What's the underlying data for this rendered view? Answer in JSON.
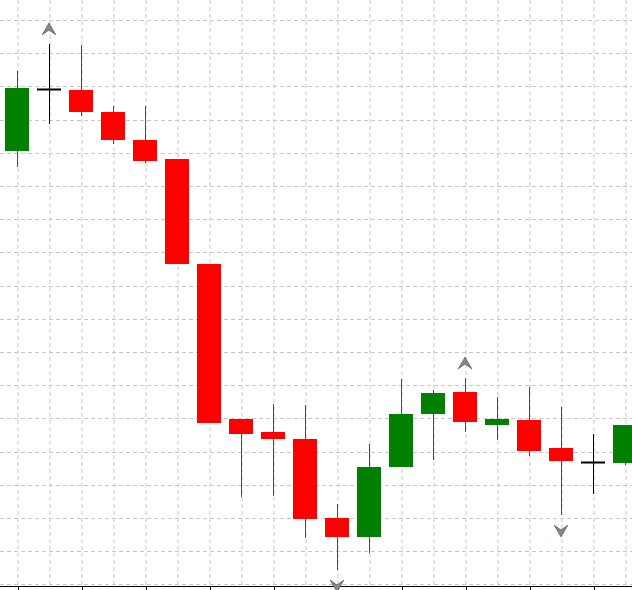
{
  "chart_data": {
    "type": "candlestick",
    "title": "",
    "xlabel": "",
    "ylabel": "",
    "grid": true,
    "legend": "none",
    "ylim": [
      0,
      590
    ],
    "colors": {
      "up": "#008000",
      "down": "#ff0000",
      "doji": "#000000",
      "grid": "#c8c8c8",
      "axis": "#000000",
      "fractal": "#808890"
    },
    "candles": [
      {
        "open": 439,
        "high": 519,
        "low": 423,
        "close": 502
      },
      {
        "open": 501,
        "high": 546,
        "low": 466,
        "close": 501
      },
      {
        "open": 500,
        "high": 545,
        "low": 474,
        "close": 478
      },
      {
        "open": 478,
        "high": 484,
        "low": 446,
        "close": 450
      },
      {
        "open": 450,
        "high": 484,
        "low": 427,
        "close": 429
      },
      {
        "open": 431,
        "high": 431,
        "low": 326,
        "close": 326
      },
      {
        "open": 326,
        "high": 326,
        "low": 167,
        "close": 167
      },
      {
        "open": 171,
        "high": 171,
        "low": 93,
        "close": 156
      },
      {
        "open": 158,
        "high": 186,
        "low": 94,
        "close": 151
      },
      {
        "open": 151,
        "high": 185,
        "low": 52,
        "close": 71
      },
      {
        "open": 72,
        "high": 86,
        "low": 20,
        "close": 53
      },
      {
        "open": 53,
        "high": 146,
        "low": 37,
        "close": 123
      },
      {
        "open": 123,
        "high": 211,
        "low": 123,
        "close": 176
      },
      {
        "open": 176,
        "high": 200,
        "low": 130,
        "close": 197
      },
      {
        "open": 198,
        "high": 212,
        "low": 158,
        "close": 168
      },
      {
        "open": 165,
        "high": 193,
        "low": 150,
        "close": 171
      },
      {
        "open": 170,
        "high": 203,
        "low": 134,
        "close": 139
      },
      {
        "open": 142,
        "high": 183,
        "low": 75,
        "close": 129
      },
      {
        "open": 128,
        "high": 156,
        "low": 96,
        "close": 128
      },
      {
        "open": 127,
        "high": 165,
        "low": 125,
        "close": 165
      }
    ],
    "fractals": [
      {
        "candle": 1,
        "direction": "up"
      },
      {
        "candle": 10,
        "direction": "down"
      },
      {
        "candle": 14,
        "direction": "up"
      },
      {
        "candle": 17,
        "direction": "down"
      }
    ]
  }
}
